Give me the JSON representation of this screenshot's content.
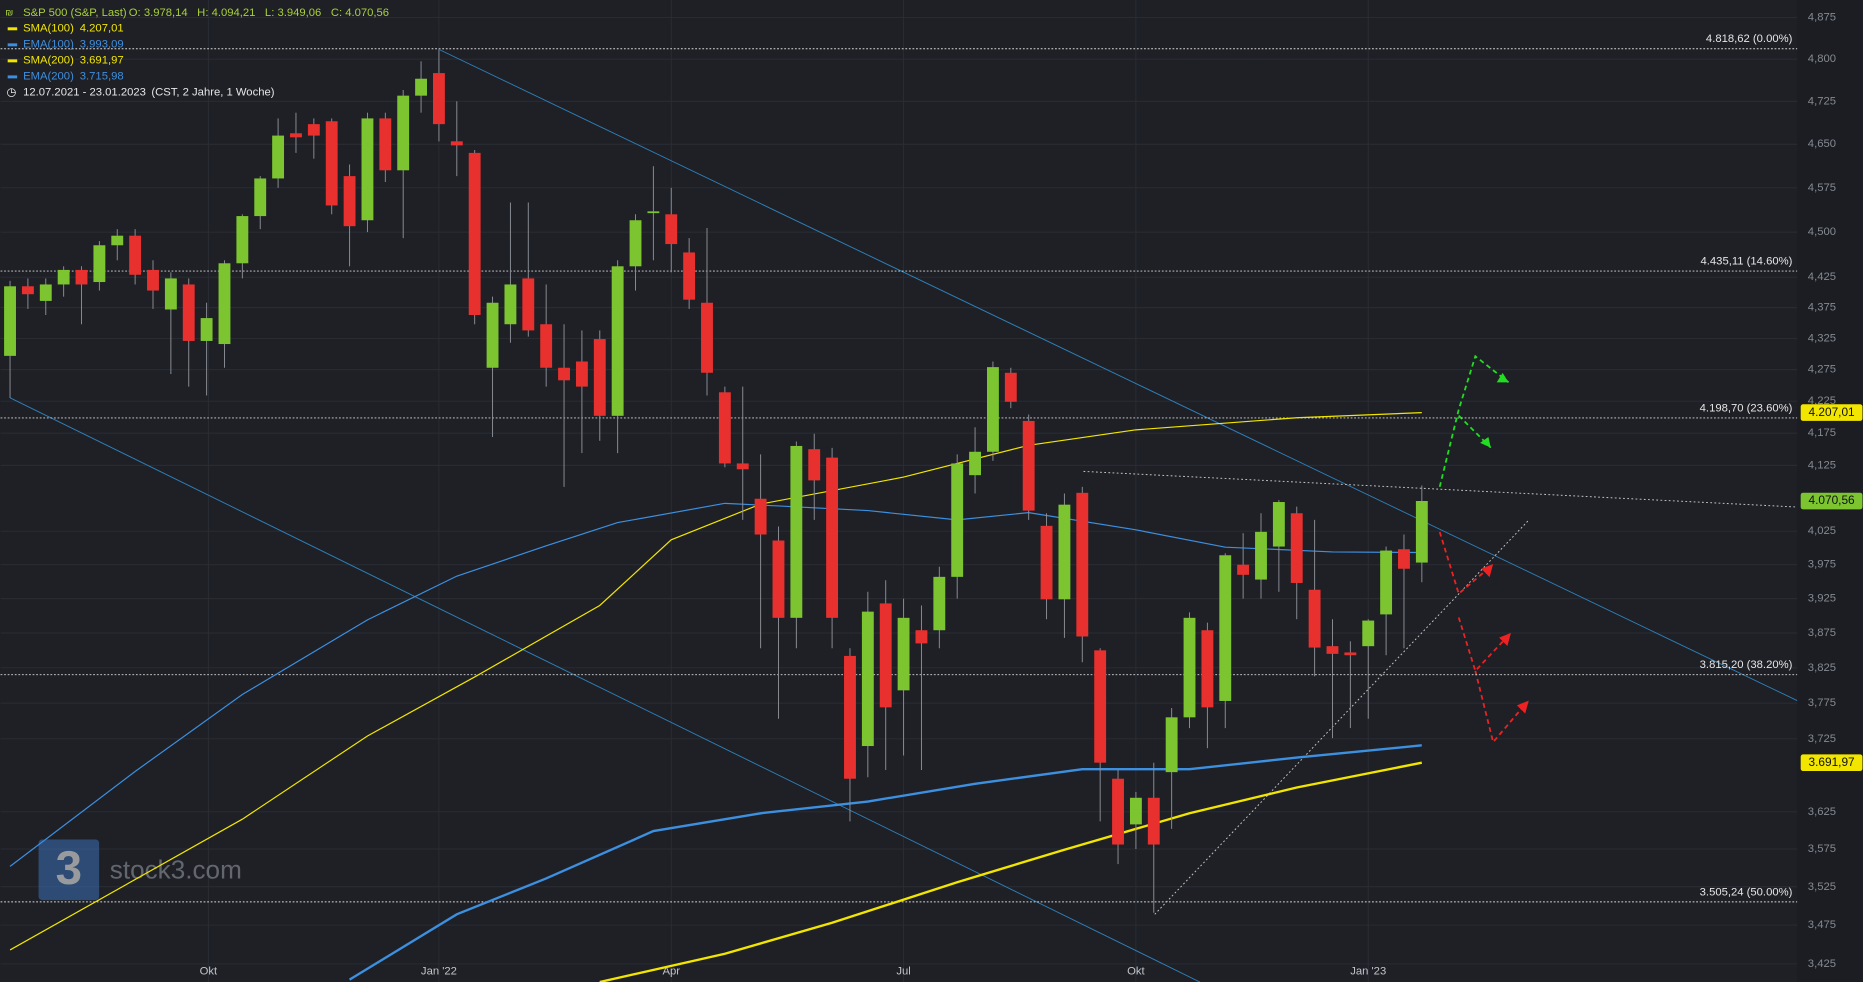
{
  "chart_data": {
    "type": "candlestick",
    "title": "S&P 500 (S&P, Last)",
    "header_values": [
      "O: 3.978,14",
      "H: 4.094,21",
      "L: 3.949,06",
      "C: 4.070,56"
    ],
    "period": "12.07.2021 - 23.01.2023",
    "period_note": "(CST, 2 Jahre, 1 Woche)",
    "watermark": "stock3.com",
    "logo": "3",
    "log_scale": true,
    "grid": true,
    "up_color": "#7cc531",
    "down_color": "#e8312f",
    "xlim": [
      -0.53,
      100
    ],
    "ylim": [
      3402,
      4907
    ],
    "xticks": [
      {
        "value": 11.1,
        "label": "Okt"
      },
      {
        "value": 24.0,
        "label": "Jan '22"
      },
      {
        "value": 37.0,
        "label": "Apr"
      },
      {
        "value": 50.0,
        "label": "Jul"
      },
      {
        "value": 63.0,
        "label": "Okt"
      },
      {
        "value": 76.0,
        "label": "Jan '23"
      }
    ],
    "yticks": [
      {
        "value": 4875,
        "label": "4,875"
      },
      {
        "value": 4800,
        "label": "4,800"
      },
      {
        "value": 4725,
        "label": "4,725"
      },
      {
        "value": 4650,
        "label": "4,650"
      },
      {
        "value": 4575,
        "label": "4,575"
      },
      {
        "value": 4500,
        "label": "4,500"
      },
      {
        "value": 4425,
        "label": "4,425"
      },
      {
        "value": 4375,
        "label": "4,375"
      },
      {
        "value": 4325,
        "label": "4,325"
      },
      {
        "value": 4275,
        "label": "4,275"
      },
      {
        "value": 4225,
        "label": "4,225"
      },
      {
        "value": 4175,
        "label": "4,175"
      },
      {
        "value": 4125,
        "label": "4,125"
      },
      {
        "value": 4025,
        "label": "4,025"
      },
      {
        "value": 3975,
        "label": "3,975"
      },
      {
        "value": 3925,
        "label": "3,925"
      },
      {
        "value": 3875,
        "label": "3,875"
      },
      {
        "value": 3825,
        "label": "3,825"
      },
      {
        "value": 3775,
        "label": "3,775"
      },
      {
        "value": 3725,
        "label": "3,725"
      },
      {
        "value": 3625,
        "label": "3,625"
      },
      {
        "value": 3575,
        "label": "3,575"
      },
      {
        "value": 3525,
        "label": "3,525"
      },
      {
        "value": 3475,
        "label": "3,475"
      },
      {
        "value": 3425,
        "label": "3,425"
      }
    ],
    "candles": {
      "open": [
        4297,
        4410,
        4386,
        4413,
        4437,
        4417,
        4478,
        4494,
        4437,
        4372,
        4413,
        4321,
        4316,
        4448,
        4527,
        4591,
        4669,
        4685,
        4690,
        4595,
        4520,
        4695,
        4605,
        4735,
        4775,
        4655,
        4635,
        4278,
        4348,
        4423,
        4348,
        4278,
        4288,
        4324,
        4202,
        4443,
        4534,
        4530,
        4466,
        4383,
        4239,
        4128,
        4074,
        4011,
        3897,
        4150,
        4137,
        3842,
        3715,
        3918,
        3793,
        3879,
        3879,
        3957,
        4110,
        4146,
        4270,
        4194,
        4033,
        3924,
        4083,
        3850,
        3670,
        3608,
        3644,
        3679,
        3755,
        3879,
        3778,
        3975,
        3953,
        4002,
        4052,
        3938,
        3856,
        3847,
        3856,
        3902,
        3998,
        3978.14
      ],
      "high": [
        4419,
        4423,
        4423,
        4443,
        4443,
        4485,
        4505,
        4505,
        4453,
        4433,
        4423,
        4383,
        4453,
        4530,
        4595,
        4695,
        4705,
        4695,
        4695,
        4615,
        4705,
        4705,
        4745,
        4796,
        4818.62,
        4725,
        4640,
        4393,
        4550,
        4550,
        4413,
        4348,
        4338,
        4338,
        4453,
        4530,
        4612,
        4575,
        4490,
        4507,
        4248,
        4248,
        4142,
        4032,
        4162,
        4174,
        4152,
        3853,
        3935,
        3952,
        3925,
        3915,
        3972,
        4142,
        4184,
        4288,
        4278,
        4204,
        4052,
        4082,
        4092,
        3853,
        3682,
        3652,
        3692,
        3768,
        3905,
        3890,
        3992,
        4022,
        4052,
        4072,
        4062,
        4042,
        3895,
        3863,
        3895,
        4002,
        4020,
        4094.21
      ],
      "low": [
        4230,
        4373,
        4363,
        4393,
        4348,
        4403,
        4453,
        4413,
        4373,
        4268,
        4248,
        4234,
        4278,
        4423,
        4505,
        4575,
        4635,
        4625,
        4530,
        4443,
        4500,
        4585,
        4490,
        4705,
        4655,
        4595,
        4348,
        4169,
        4318,
        4328,
        4248,
        4092,
        4144,
        4163,
        4144,
        4403,
        4453,
        4433,
        4373,
        4234,
        4122,
        4042,
        3853,
        3753,
        3853,
        4042,
        3853,
        3612,
        3672,
        3682,
        3702,
        3682,
        3853,
        3925,
        4082,
        4132,
        4214,
        4042,
        3895,
        3868,
        3833,
        3612,
        3555,
        3575,
        3491,
        3602,
        3740,
        3712,
        3740,
        3925,
        3925,
        3935,
        3895,
        3813,
        3726,
        3740,
        3753,
        3843,
        3853,
        3949.06
      ],
      "close": [
        4410,
        4397,
        4413,
        4437,
        4413,
        4478,
        4494,
        4429,
        4403,
        4423,
        4321,
        4358,
        4448,
        4527,
        4591,
        4665,
        4662,
        4665,
        4545,
        4510,
        4695,
        4605,
        4735,
        4765,
        4685,
        4648,
        4363,
        4383,
        4413,
        4338,
        4278,
        4258,
        4248,
        4202,
        4443,
        4520,
        4535,
        4480,
        4388,
        4270,
        4128,
        4119,
        4020,
        3897,
        4155,
        4102,
        3897,
        3670,
        3906,
        3769,
        3897,
        3860,
        3957,
        4128,
        4146,
        4279,
        4224,
        4056,
        3924,
        4065,
        3870,
        3692,
        3581,
        3644,
        3581,
        3755,
        3897,
        3769,
        3989,
        3960,
        4024,
        4069,
        3948,
        3854,
        3845,
        3843,
        3893,
        3996,
        3969,
        4070.56
      ],
      "last_label": "4.070,56",
      "last_color": "#7cc531"
    },
    "series": [
      {
        "name": "SMA(100)",
        "color": "#f2e600",
        "width": 1,
        "x": [
          0,
          13,
          20,
          26,
          33,
          37,
          42,
          50,
          57,
          63,
          72,
          79
        ],
        "values": [
          3443,
          3615,
          3729,
          3812,
          3915,
          4012,
          4066,
          4107,
          4156,
          4180,
          4199,
          4207.01
        ],
        "value_label": "4.207,01",
        "tag": true
      },
      {
        "name": "EMA(100)",
        "color": "#3d8fe0",
        "width": 1,
        "x": [
          0,
          7,
          13,
          20,
          25,
          30,
          34,
          40,
          43,
          48,
          53,
          57,
          63,
          68,
          74,
          79
        ],
        "values": [
          3552,
          3680,
          3787,
          3894,
          3958,
          4003,
          4038,
          4067,
          4063,
          4056,
          4042,
          4053,
          4027,
          4001,
          3994,
          3993.09
        ],
        "value_label": "3.993,09",
        "tag": false
      },
      {
        "name": "SMA(200)",
        "color": "#f2e600",
        "width": 2,
        "x": [
          33,
          40,
          46,
          53,
          59,
          66,
          72,
          79
        ],
        "values": [
          3402,
          3438,
          3478,
          3531,
          3574,
          3623,
          3658,
          3691.97
        ],
        "value_label": "3.691,97",
        "tag": true
      },
      {
        "name": "EMA(200)",
        "color": "#3d8fe0",
        "width": 2,
        "x": [
          19,
          25,
          30,
          36,
          42,
          48,
          54,
          60,
          66,
          72,
          79
        ],
        "values": [
          3405,
          3489,
          3536,
          3599,
          3623,
          3639,
          3663,
          3683,
          3683,
          3699,
          3715.98
        ],
        "value_label": "3.715,98",
        "tag": false
      }
    ],
    "levels": [
      {
        "value": 4818.62,
        "label": "4.818,62 (0.00%)"
      },
      {
        "value": 4435.11,
        "label": "4.435,11 (14.60%)"
      },
      {
        "value": 4198.7,
        "label": "4.198,70 (23.60%)"
      },
      {
        "value": 3815.2,
        "label": "3.815,20 (38.20%)"
      },
      {
        "value": 3505.24,
        "label": "3.505,24 (50.00%)"
      }
    ]
  }
}
